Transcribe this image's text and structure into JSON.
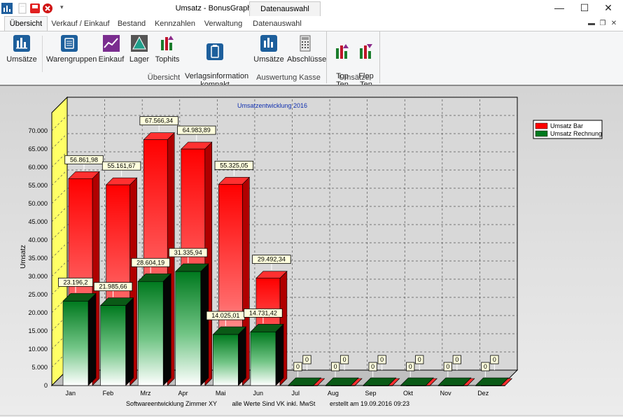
{
  "window": {
    "title": "Umsatz - BonusGraph",
    "context_tab_header": "Datenauswahl",
    "minimize_label": "—",
    "maximize_label": "☐",
    "close_label": "✕"
  },
  "tabs": [
    "Übersicht",
    "Verkauf / Einkauf",
    "Bestand",
    "Kennzahlen",
    "Verwaltung",
    "Datenauswahl"
  ],
  "ribbon": {
    "groups": [
      {
        "label": "Übersicht",
        "buttons": [
          {
            "label": "Umsätze",
            "icon": "chart-icon"
          },
          {
            "label": "Warengruppen",
            "icon": "list-icon"
          },
          {
            "label": "Einkauf",
            "icon": "trend-icon"
          },
          {
            "label": "Lager",
            "icon": "pyramid-icon"
          },
          {
            "label": "Tophits",
            "icon": "tophits-icon"
          },
          {
            "label": "Verlagsinformation\nkompakt",
            "icon": "clipboard-icon"
          }
        ]
      },
      {
        "label": "Auswertung Kasse",
        "buttons": [
          {
            "label": "Umsätze",
            "icon": "chart-icon"
          },
          {
            "label": "Abschlüsse",
            "icon": "register-icon"
          }
        ]
      },
      {
        "label": "Umsätze",
        "buttons": [
          {
            "label": "Top\nTen",
            "icon": "top-ten-icon"
          },
          {
            "label": "Flop\nTen",
            "icon": "flop-ten-icon"
          }
        ]
      }
    ]
  },
  "chart_data": {
    "type": "bar",
    "title": "Umsatzentwicklung 2016",
    "ylabel": "Umsatz",
    "xlabel": "",
    "ylim": [
      0,
      75000
    ],
    "yticks": [
      "0",
      "5.000",
      "10.000",
      "15.000",
      "20.000",
      "25.000",
      "30.000",
      "35.000",
      "40.000",
      "45.000",
      "50.000",
      "55.000",
      "60.000",
      "65.000",
      "70.000"
    ],
    "grid": true,
    "legend_position": "top-right",
    "categories": [
      "Jan",
      "Feb",
      "Mrz",
      "Apr",
      "Mai",
      "Jun",
      "Jul",
      "Aug",
      "Sep",
      "Okt",
      "Nov",
      "Dez"
    ],
    "series": [
      {
        "name": "Umsatz Bar",
        "color": "#ff0000",
        "values": [
          56861.98,
          55161.67,
          67566.34,
          64983.89,
          55325.05,
          29492.34,
          0,
          0,
          0,
          0,
          0,
          0
        ],
        "labels": [
          "56.861,98",
          "55.161,67",
          "67.566,34",
          "64.983,89",
          "55.325,05",
          "29.492,34",
          "0",
          "0",
          "0",
          "0",
          "0",
          "0"
        ]
      },
      {
        "name": "Umsatz Rechnung",
        "color": "#007a1f",
        "values": [
          23196.2,
          21985.66,
          28604.19,
          31335.94,
          14025.01,
          14731.42,
          0,
          0,
          0,
          0,
          0,
          0
        ],
        "labels": [
          "23.196,2",
          "21.985,66",
          "28.604,19",
          "31.335,94",
          "14.025,01",
          "14.731,42",
          "0",
          "0",
          "0",
          "0",
          "0",
          "0"
        ]
      }
    ],
    "footer": [
      "Softwareentwicklung Zimmer XY",
      "alle Werte Sind VK inkl. MwSt",
      "erstellt am 19.09.2016 09:23"
    ]
  }
}
